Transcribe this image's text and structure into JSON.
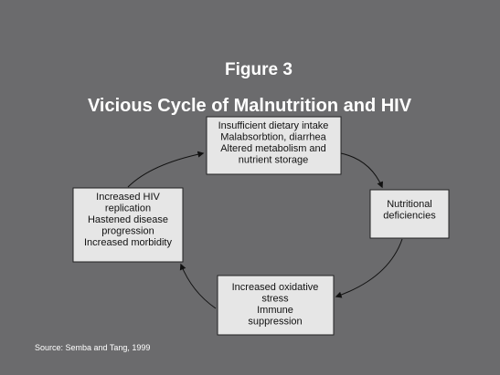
{
  "header": {
    "title": "Figure 3",
    "subtitle": "Vicious Cycle of Malnutrition and HIV"
  },
  "nodes": [
    {
      "label": [
        "Insufficient dietary intake",
        "Malabsorbtion, diarrhea",
        "Altered metabolism and",
        "nutrient storage"
      ]
    },
    {
      "label": [
        "Nutritional",
        "deficiencies"
      ]
    },
    {
      "label": [
        "Increased oxidative",
        "stress",
        "Immune",
        "suppression"
      ]
    },
    {
      "label": [
        "Increased HIV",
        "replication",
        "Hastened disease",
        "progression",
        "Increased morbidity"
      ]
    }
  ],
  "source": "Source: Semba and Tang, 1999"
}
